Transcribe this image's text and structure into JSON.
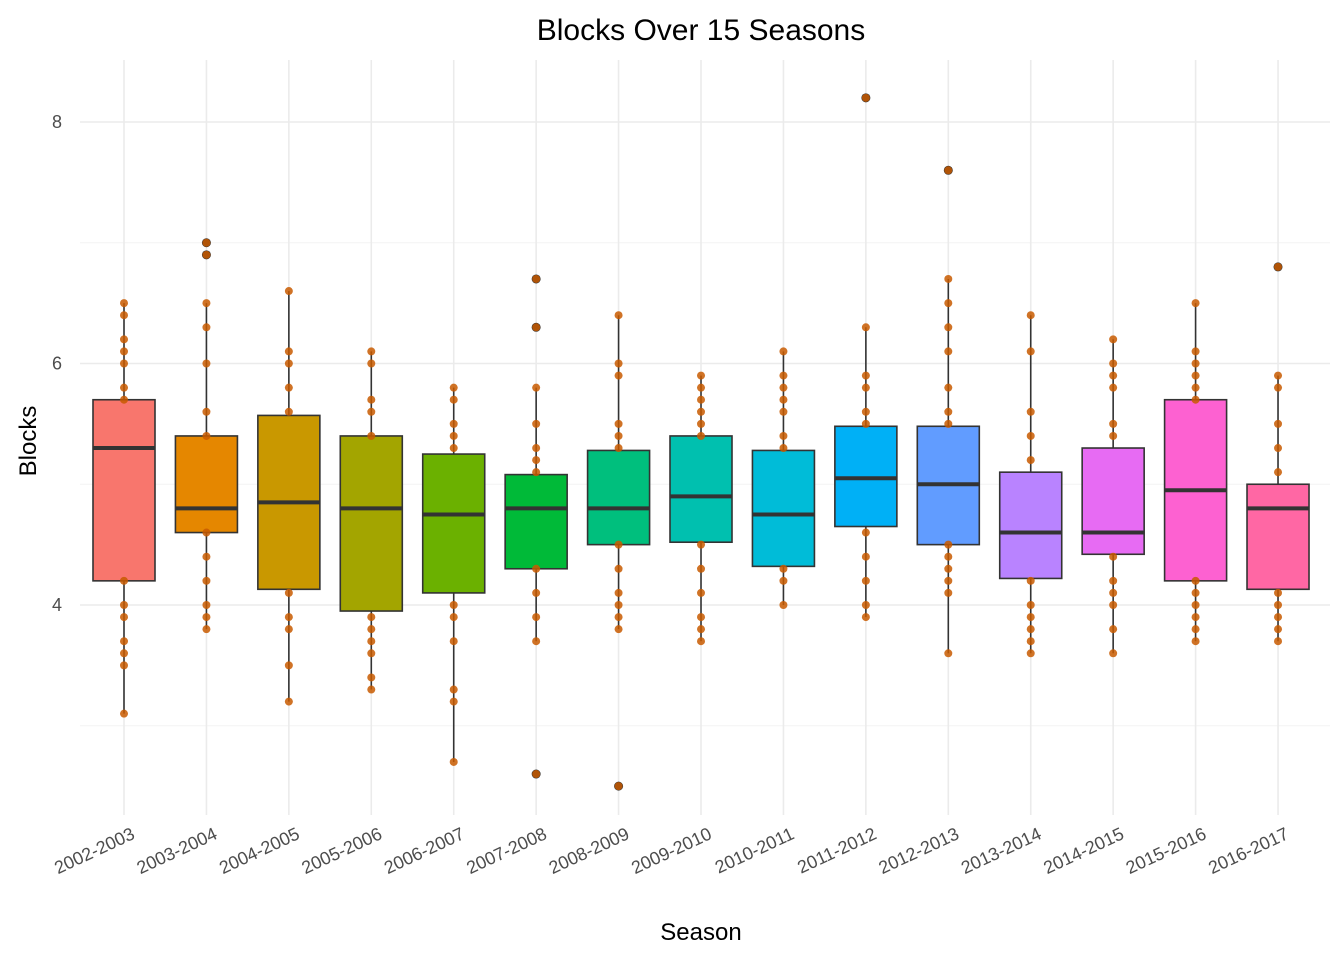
{
  "chart_data": {
    "type": "boxplot",
    "title": "Blocks Over 15 Seasons",
    "xlabel": "Season",
    "ylabel": "Blocks",
    "ylim": [
      2.4,
      8.5
    ],
    "yticks": [
      4,
      6,
      8
    ],
    "grid": true,
    "legend": "none",
    "point_color": "#c85a00",
    "outlier_color": "#333333",
    "categories": [
      "2002-2003",
      "2003-2004",
      "2004-2005",
      "2005-2006",
      "2006-2007",
      "2007-2008",
      "2008-2009",
      "2009-2010",
      "2010-2011",
      "2011-2012",
      "2012-2013",
      "2013-2014",
      "2014-2015",
      "2015-2016",
      "2016-2017"
    ],
    "boxes": [
      {
        "season": "2002-2003",
        "color": "#f8766d",
        "min": 3.1,
        "q1": 4.2,
        "median": 5.3,
        "q3": 5.7,
        "max": 6.5,
        "outliers": [],
        "points": [
          3.1,
          3.5,
          3.6,
          3.7,
          3.9,
          4.0,
          4.2,
          5.7,
          5.8,
          6.0,
          6.1,
          6.2,
          6.4,
          6.5
        ]
      },
      {
        "season": "2003-2004",
        "color": "#e58700",
        "min": 3.8,
        "q1": 4.6,
        "median": 4.8,
        "q3": 5.4,
        "max": 6.5,
        "outliers": [
          6.9,
          7.0
        ],
        "points": [
          3.8,
          3.9,
          4.0,
          4.2,
          4.4,
          4.6,
          5.4,
          5.6,
          6.0,
          6.3,
          6.5,
          6.9,
          7.0
        ]
      },
      {
        "season": "2004-2005",
        "color": "#c99800",
        "min": 3.2,
        "q1": 4.13,
        "median": 4.85,
        "q3": 5.57,
        "max": 6.6,
        "outliers": [],
        "points": [
          3.2,
          3.5,
          3.8,
          3.9,
          4.1,
          5.6,
          5.8,
          6.0,
          6.1,
          6.6
        ]
      },
      {
        "season": "2005-2006",
        "color": "#a3a500",
        "min": 3.3,
        "q1": 3.95,
        "median": 4.8,
        "q3": 5.4,
        "max": 6.1,
        "outliers": [],
        "points": [
          3.3,
          3.4,
          3.6,
          3.7,
          3.8,
          3.9,
          5.4,
          5.6,
          5.7,
          6.0,
          6.1
        ]
      },
      {
        "season": "2006-2007",
        "color": "#6bb100",
        "min": 2.7,
        "q1": 4.1,
        "median": 4.75,
        "q3": 5.25,
        "max": 5.8,
        "outliers": [],
        "points": [
          2.7,
          3.2,
          3.3,
          3.7,
          3.9,
          4.0,
          5.3,
          5.4,
          5.5,
          5.7,
          5.8
        ]
      },
      {
        "season": "2007-2008",
        "color": "#00ba38",
        "min": 3.7,
        "q1": 4.3,
        "median": 4.8,
        "q3": 5.08,
        "max": 5.8,
        "outliers": [
          2.6,
          6.3,
          6.7
        ],
        "points": [
          2.6,
          3.7,
          3.9,
          4.1,
          4.3,
          5.1,
          5.2,
          5.3,
          5.5,
          5.8,
          6.3,
          6.7
        ]
      },
      {
        "season": "2008-2009",
        "color": "#00bf7d",
        "min": 3.8,
        "q1": 4.5,
        "median": 4.8,
        "q3": 5.28,
        "max": 6.4,
        "outliers": [
          2.5
        ],
        "points": [
          2.5,
          3.8,
          3.9,
          4.0,
          4.1,
          4.3,
          4.5,
          5.3,
          5.4,
          5.5,
          5.9,
          6.0,
          6.4
        ]
      },
      {
        "season": "2009-2010",
        "color": "#00c0af",
        "min": 3.7,
        "q1": 4.52,
        "median": 4.9,
        "q3": 5.4,
        "max": 5.9,
        "outliers": [],
        "points": [
          3.7,
          3.8,
          3.9,
          4.1,
          4.3,
          4.5,
          5.4,
          5.5,
          5.6,
          5.7,
          5.8,
          5.9
        ]
      },
      {
        "season": "2010-2011",
        "color": "#00bcd8",
        "min": 4.0,
        "q1": 4.32,
        "median": 4.75,
        "q3": 5.28,
        "max": 6.1,
        "outliers": [],
        "points": [
          4.0,
          4.2,
          4.3,
          5.3,
          5.4,
          5.6,
          5.7,
          5.8,
          5.9,
          6.1
        ]
      },
      {
        "season": "2011-2012",
        "color": "#00b0f6",
        "min": 3.9,
        "q1": 4.65,
        "median": 5.05,
        "q3": 5.48,
        "max": 6.3,
        "outliers": [
          8.2
        ],
        "points": [
          3.9,
          4.0,
          4.2,
          4.4,
          4.6,
          5.5,
          5.6,
          5.8,
          5.9,
          6.3,
          8.2
        ]
      },
      {
        "season": "2012-2013",
        "color": "#619cff",
        "min": 3.6,
        "q1": 4.5,
        "median": 5.0,
        "q3": 5.48,
        "max": 6.7,
        "outliers": [
          7.6
        ],
        "points": [
          3.6,
          4.1,
          4.2,
          4.3,
          4.4,
          4.5,
          5.5,
          5.6,
          5.8,
          6.1,
          6.3,
          6.5,
          6.7,
          7.6
        ]
      },
      {
        "season": "2013-2014",
        "color": "#b983ff",
        "min": 3.6,
        "q1": 4.22,
        "median": 4.6,
        "q3": 5.1,
        "max": 6.4,
        "outliers": [],
        "points": [
          3.6,
          3.7,
          3.8,
          3.9,
          4.0,
          4.2,
          5.2,
          5.4,
          5.6,
          6.1,
          6.4
        ]
      },
      {
        "season": "2014-2015",
        "color": "#e76bf3",
        "min": 3.6,
        "q1": 4.42,
        "median": 4.6,
        "q3": 5.3,
        "max": 6.2,
        "outliers": [],
        "points": [
          3.6,
          3.8,
          4.0,
          4.1,
          4.2,
          4.4,
          5.4,
          5.5,
          5.8,
          5.9,
          6.0,
          6.2
        ]
      },
      {
        "season": "2015-2016",
        "color": "#fd61d1",
        "min": 3.7,
        "q1": 4.2,
        "median": 4.95,
        "q3": 5.7,
        "max": 6.5,
        "outliers": [],
        "points": [
          3.7,
          3.8,
          3.9,
          4.0,
          4.1,
          4.2,
          5.7,
          5.8,
          5.9,
          6.0,
          6.1,
          6.5
        ]
      },
      {
        "season": "2016-2017",
        "color": "#ff67a4",
        "min": 3.7,
        "q1": 4.13,
        "median": 4.8,
        "q3": 5.0,
        "max": 5.9,
        "outliers": [
          6.8
        ],
        "points": [
          3.7,
          3.8,
          3.9,
          4.0,
          4.1,
          5.1,
          5.3,
          5.5,
          5.8,
          5.9,
          6.8
        ]
      }
    ]
  }
}
